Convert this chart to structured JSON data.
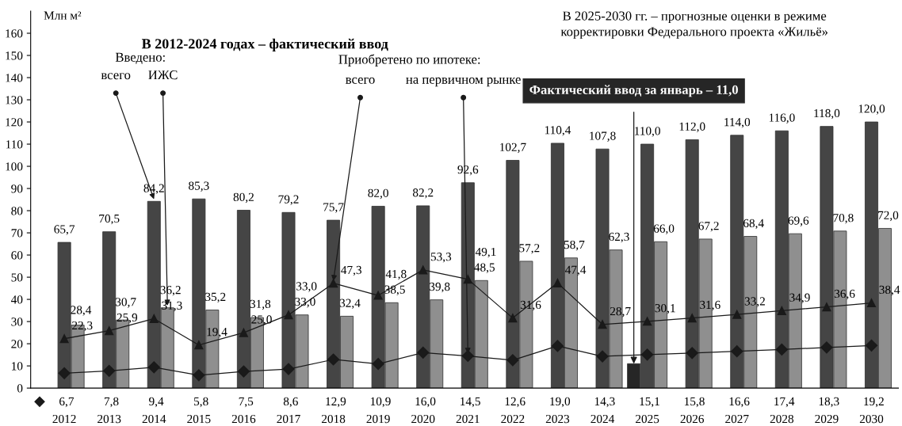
{
  "chart_data": {
    "type": "bar",
    "title": "В 2012-2024 годах – фактический ввод",
    "ylabel": "Млн м²",
    "annotations": [
      "В 2025-2030 гг. – прогнозные оценки в режиме\nкорректировки Федерального проекта «Жильё»",
      "Введено:",
      "Приобретено по ипотеке:"
    ],
    "categories": [
      "2012",
      "2013",
      "2014",
      "2015",
      "2016",
      "2017",
      "2018",
      "2019",
      "2020",
      "2021",
      "2022",
      "2023",
      "2024",
      "2025",
      "2026",
      "2027",
      "2028",
      "2029",
      "2030"
    ],
    "ylim": [
      0,
      170
    ],
    "yticks": [
      0,
      10,
      20,
      30,
      40,
      50,
      60,
      70,
      80,
      90,
      100,
      110,
      120,
      130,
      140,
      150,
      160
    ],
    "grid": false,
    "legend": false,
    "series": [
      {
        "name": "Фактический ввод за январь – 11,0",
        "color": "#262626",
        "values": [
          null,
          null,
          null,
          null,
          null,
          null,
          null,
          null,
          null,
          null,
          null,
          null,
          null,
          11.0,
          null,
          null,
          null,
          null,
          null
        ]
      },
      {
        "name": "всего",
        "color": "#454545",
        "values": [
          65.7,
          70.5,
          84.2,
          85.3,
          80.2,
          79.2,
          75.7,
          82.0,
          82.2,
          92.6,
          102.7,
          110.4,
          107.8,
          110.0,
          112.0,
          114.0,
          116.0,
          118.0,
          120.0
        ],
        "value_labels": [
          "65,7",
          "70,5",
          "84,2",
          "85,3",
          "80,2",
          "79,2",
          "75,7",
          "82,0",
          "82,2",
          "92,6",
          "102,7",
          "110,4",
          "107,8",
          "110,0",
          "112,0",
          "114,0",
          "116,0",
          "118,0",
          "120,0"
        ]
      },
      {
        "name": "ИЖС",
        "color": "#8f8f8f",
        "values": [
          28.4,
          30.7,
          36.2,
          35.2,
          31.8,
          33.0,
          32.4,
          38.5,
          39.8,
          48.5,
          57.2,
          58.7,
          62.3,
          66.0,
          67.2,
          68.4,
          69.6,
          70.8,
          72.0
        ],
        "value_labels": [
          "28,4",
          "30,7",
          "36,2",
          "35,2",
          "31,8",
          "33,0",
          "32,4",
          "38,5",
          "39,8",
          "48,5",
          "57,2",
          "58,7",
          "62,3",
          "66,0",
          "67,2",
          "68,4",
          "69,6",
          "70,8",
          "72,0"
        ]
      },
      {
        "name": "всего",
        "type": "line",
        "color": "#1a1a1a",
        "marker": "triangle",
        "line_style": "solid",
        "values": [
          22.3,
          25.9,
          31.3,
          19.4,
          25.0,
          33.0,
          47.3,
          41.8,
          53.3,
          49.1,
          31.6,
          47.4,
          28.7,
          30.1,
          31.6,
          33.2,
          34.9,
          36.6,
          38.4
        ],
        "value_labels": [
          "22,3",
          "25,9",
          "31,3",
          "19,4",
          "25,0",
          "33,0",
          "47,3",
          "41,8",
          "53,3",
          "49,1",
          "31,6",
          "47,4",
          "28,7",
          "30,1",
          "31,6",
          "33,2",
          "34,9",
          "36,6",
          "38,4"
        ]
      },
      {
        "name": "на первичном рынке",
        "type": "line",
        "color": "#1a1a1a",
        "marker": "diamond",
        "line_style": "solid",
        "values": [
          6.7,
          7.8,
          9.4,
          5.8,
          7.5,
          8.6,
          12.9,
          10.9,
          16.0,
          14.5,
          12.6,
          19.0,
          14.3,
          15.1,
          15.8,
          16.6,
          17.4,
          18.3,
          19.2
        ],
        "value_labels": [
          "6,7",
          "7,8",
          "9,4",
          "5,8",
          "7,5",
          "8,6",
          "12,9",
          "10,9",
          "16,0",
          "14,5",
          "12,6",
          "19,0",
          "14,3",
          "15,1",
          "15,8",
          "16,6",
          "17,4",
          "18,3",
          "19,2"
        ]
      }
    ]
  }
}
